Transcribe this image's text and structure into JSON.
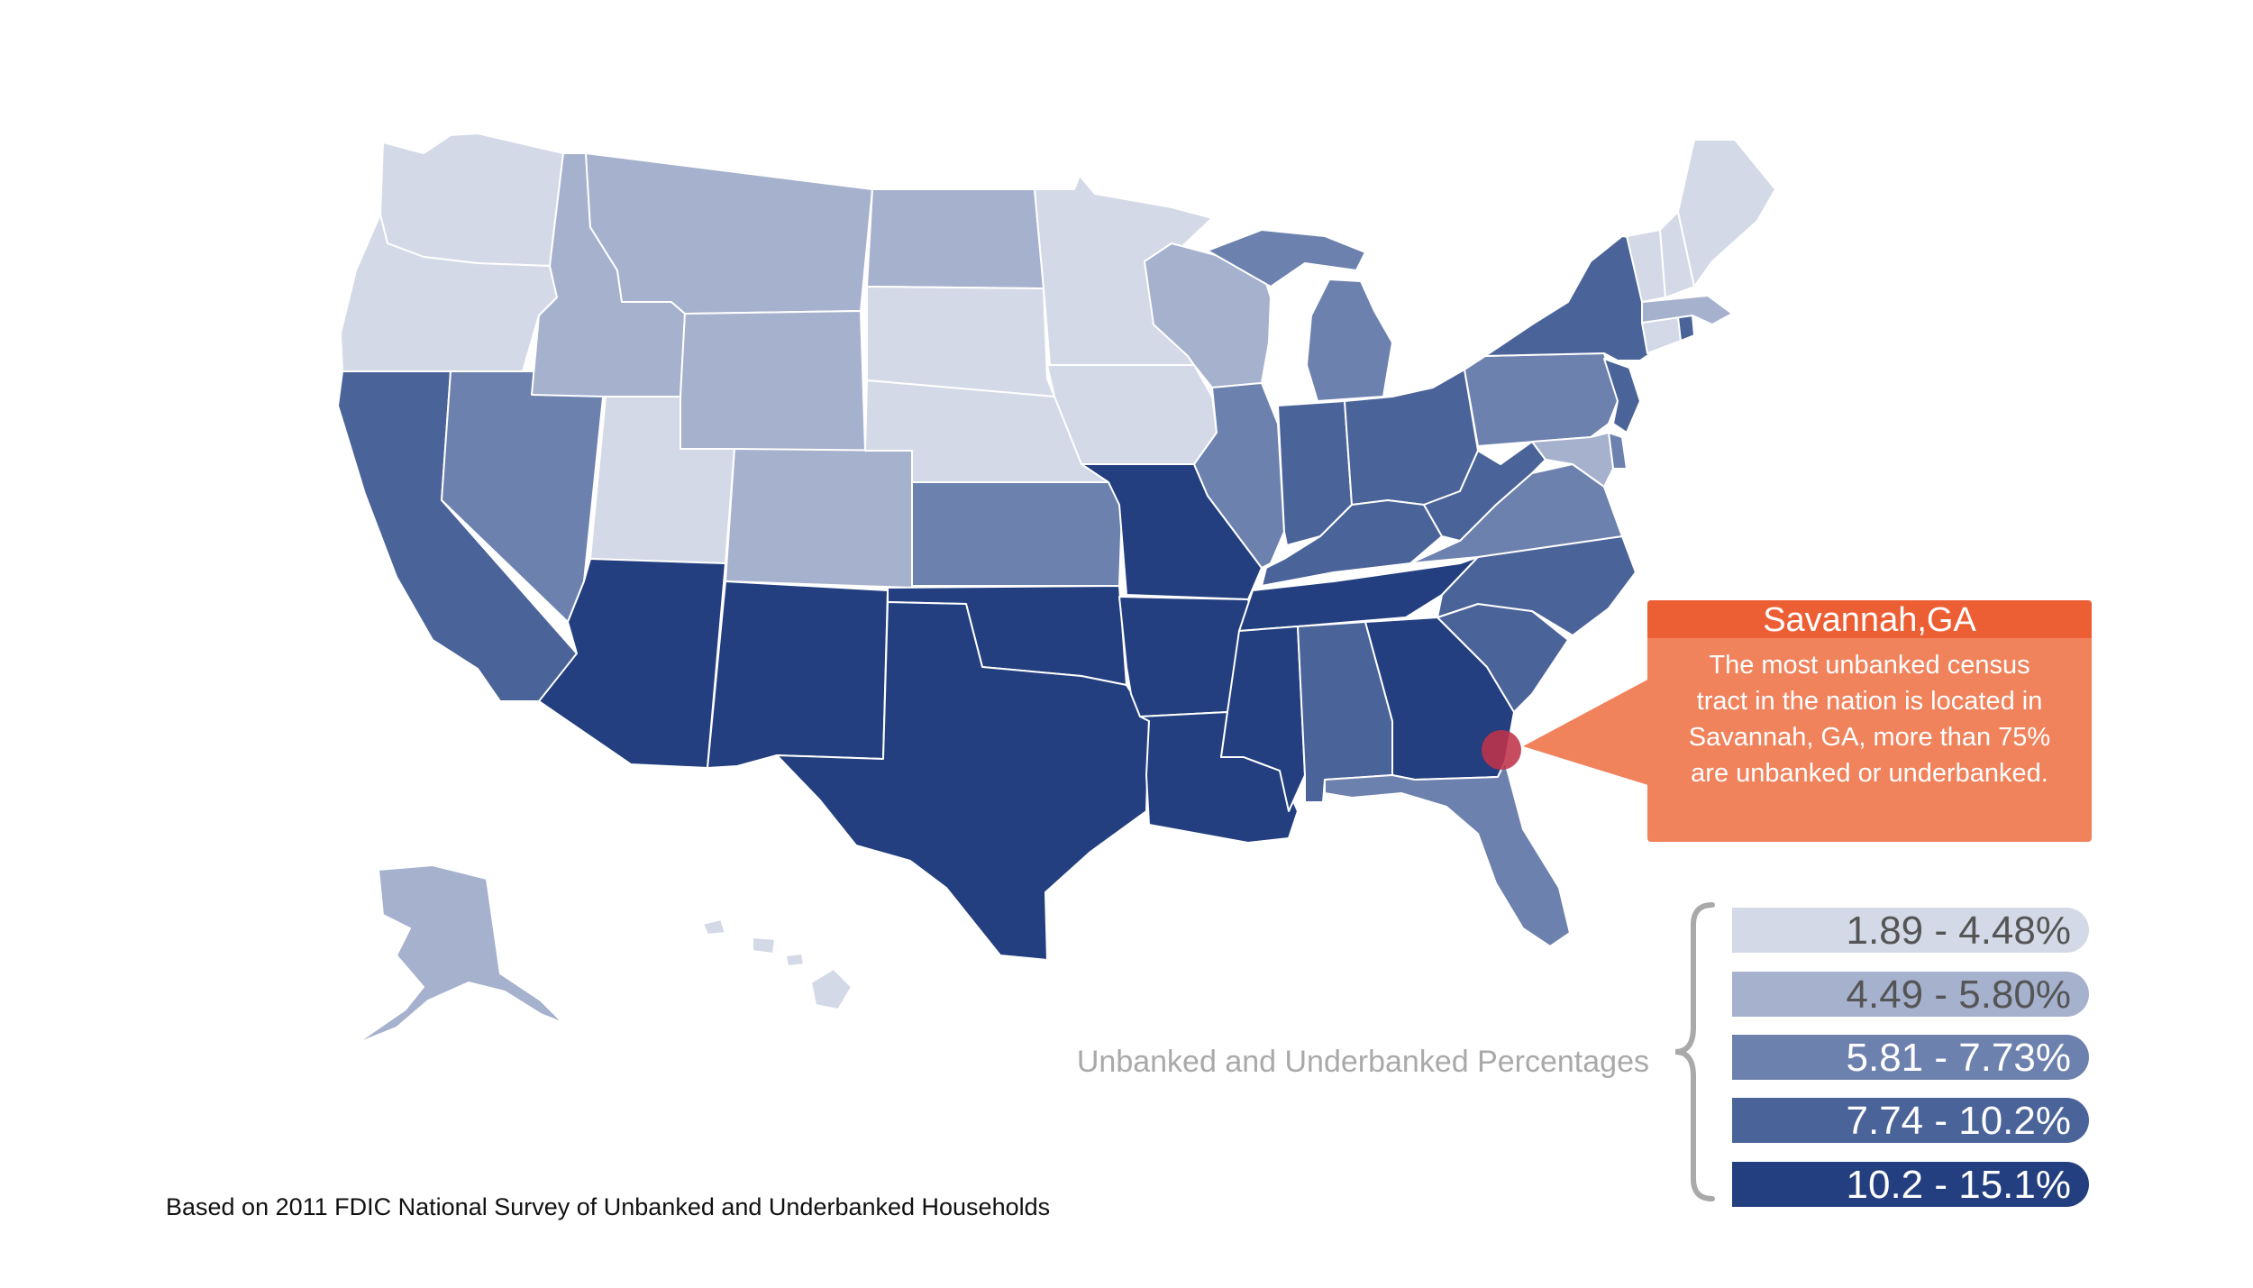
{
  "callout": {
    "title": "Savannah,GA",
    "lines": [
      "The most unbanked census",
      "tract in the nation is located in",
      "Savannah, GA, more than 75%",
      "are unbanked or underbanked."
    ]
  },
  "legend": {
    "title": "Unbanked and Underbanked Percentages",
    "items": [
      {
        "label": "1.89 - 4.48%",
        "color": "#d3d9e7",
        "text_color": "#555555"
      },
      {
        "label": "4.49 - 5.80%",
        "color": "#a5b1cd",
        "text_color": "#555555"
      },
      {
        "label": "5.81 - 7.73%",
        "color": "#6d81ae",
        "text_color": "#ffffff"
      },
      {
        "label": "7.74 - 10.2%",
        "color": "#4a6399",
        "text_color": "#ffffff"
      },
      {
        "label": "10.2 - 15.1%",
        "color": "#233f7f",
        "text_color": "#ffffff"
      }
    ]
  },
  "footnote": "Based on 2011 FDIC National Survey of Unbanked and Underbanked Households",
  "marker": {
    "name": "Savannah, GA",
    "color": "#c0334a"
  },
  "states": [
    {
      "name": "Washington",
      "tier": 0
    },
    {
      "name": "Oregon",
      "tier": 0
    },
    {
      "name": "California",
      "tier": 3
    },
    {
      "name": "Nevada",
      "tier": 2
    },
    {
      "name": "Idaho",
      "tier": 1
    },
    {
      "name": "Montana",
      "tier": 1
    },
    {
      "name": "Wyoming",
      "tier": 1
    },
    {
      "name": "Utah",
      "tier": 0
    },
    {
      "name": "Arizona",
      "tier": 4
    },
    {
      "name": "Colorado",
      "tier": 1
    },
    {
      "name": "New Mexico",
      "tier": 4
    },
    {
      "name": "North Dakota",
      "tier": 1
    },
    {
      "name": "South Dakota",
      "tier": 0
    },
    {
      "name": "Nebraska",
      "tier": 0
    },
    {
      "name": "Kansas",
      "tier": 2
    },
    {
      "name": "Oklahoma",
      "tier": 4
    },
    {
      "name": "Texas",
      "tier": 4
    },
    {
      "name": "Minnesota",
      "tier": 0
    },
    {
      "name": "Iowa",
      "tier": 0
    },
    {
      "name": "Missouri",
      "tier": 4
    },
    {
      "name": "Arkansas",
      "tier": 4
    },
    {
      "name": "Louisiana",
      "tier": 4
    },
    {
      "name": "Wisconsin",
      "tier": 1
    },
    {
      "name": "Illinois",
      "tier": 2
    },
    {
      "name": "Michigan",
      "tier": 2
    },
    {
      "name": "Indiana",
      "tier": 3
    },
    {
      "name": "Ohio",
      "tier": 3
    },
    {
      "name": "Kentucky",
      "tier": 3
    },
    {
      "name": "Tennessee",
      "tier": 4
    },
    {
      "name": "Mississippi",
      "tier": 4
    },
    {
      "name": "Alabama",
      "tier": 3
    },
    {
      "name": "Georgia",
      "tier": 4
    },
    {
      "name": "Florida",
      "tier": 2
    },
    {
      "name": "South Carolina",
      "tier": 3
    },
    {
      "name": "North Carolina",
      "tier": 3
    },
    {
      "name": "Virginia",
      "tier": 2
    },
    {
      "name": "West Virginia",
      "tier": 3
    },
    {
      "name": "Pennsylvania",
      "tier": 2
    },
    {
      "name": "New York",
      "tier": 3
    },
    {
      "name": "New Jersey",
      "tier": 3
    },
    {
      "name": "Delaware",
      "tier": 2
    },
    {
      "name": "Maryland",
      "tier": 1
    },
    {
      "name": "Connecticut",
      "tier": 0
    },
    {
      "name": "Rhode Island",
      "tier": 3
    },
    {
      "name": "Massachusetts",
      "tier": 1
    },
    {
      "name": "Vermont",
      "tier": 0
    },
    {
      "name": "New Hampshire",
      "tier": 0
    },
    {
      "name": "Maine",
      "tier": 0
    },
    {
      "name": "Alaska",
      "tier": 1
    },
    {
      "name": "Hawaii",
      "tier": 0
    }
  ]
}
